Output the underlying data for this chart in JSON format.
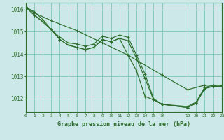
{
  "background_color": "#cce8e8",
  "plot_bg_color": "#cce8e8",
  "grid_color": "#88ccbb",
  "line_color": "#2d6e2d",
  "title": "Graphe pression niveau de la mer (hPa)",
  "xlim": [
    0,
    23
  ],
  "ylim": [
    1011.4,
    1016.3
  ],
  "yticks": [
    1012,
    1013,
    1014,
    1015,
    1016
  ],
  "xticks": [
    0,
    1,
    2,
    3,
    4,
    5,
    6,
    7,
    8,
    9,
    10,
    11,
    12,
    13,
    14,
    15,
    16,
    19,
    20,
    21,
    22,
    23
  ],
  "series": [
    {
      "x": [
        0,
        1,
        3,
        6,
        9,
        12,
        16,
        19,
        21,
        22,
        23
      ],
      "y": [
        1016.1,
        1015.85,
        1015.5,
        1015.05,
        1014.5,
        1013.95,
        1013.05,
        1012.4,
        1012.6,
        1012.6,
        1012.6
      ]
    },
    {
      "x": [
        0,
        1,
        2,
        3,
        4,
        5,
        6,
        7,
        8,
        9,
        10,
        11,
        12,
        13,
        14,
        15,
        16,
        19,
        20,
        21,
        22,
        23
      ],
      "y": [
        1016.1,
        1015.9,
        1015.55,
        1015.1,
        1014.75,
        1014.5,
        1014.45,
        1014.35,
        1014.45,
        1014.8,
        1014.7,
        1014.85,
        1014.75,
        1013.95,
        1013.1,
        1012.0,
        1011.75,
        1011.65,
        1011.85,
        1012.5,
        1012.6,
        1012.6
      ]
    },
    {
      "x": [
        0,
        1,
        2,
        3,
        4,
        5,
        6,
        7,
        8,
        9,
        10,
        11,
        12,
        13,
        14,
        15,
        16,
        19,
        20,
        21,
        22,
        23
      ],
      "y": [
        1016.1,
        1015.75,
        1015.45,
        1015.1,
        1014.65,
        1014.4,
        1014.3,
        1014.2,
        1014.3,
        1014.65,
        1014.55,
        1014.7,
        1014.6,
        1013.8,
        1012.9,
        1011.95,
        1011.75,
        1011.6,
        1011.8,
        1012.45,
        1012.55,
        1012.55
      ]
    },
    {
      "x": [
        0,
        1,
        2,
        3,
        4,
        5,
        6,
        7,
        8,
        9,
        10,
        11,
        12,
        13,
        14,
        15,
        16,
        19,
        20,
        21,
        22,
        23
      ],
      "y": [
        1016.1,
        1015.75,
        1015.45,
        1015.1,
        1014.65,
        1014.4,
        1014.3,
        1014.2,
        1014.3,
        1014.65,
        1014.55,
        1014.7,
        1013.95,
        1013.25,
        1012.1,
        1011.95,
        1011.75,
        1011.6,
        1011.8,
        1012.45,
        1012.55,
        1012.55
      ]
    }
  ]
}
